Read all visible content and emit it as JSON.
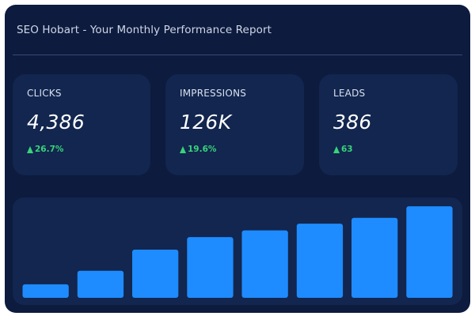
{
  "header": {
    "title": "SEO Hobart - Your Monthly Performance Report"
  },
  "metrics": [
    {
      "label": "CLICKS",
      "value": "4,386",
      "change": "26.7%",
      "trend_icon": "arrow-up-icon"
    },
    {
      "label": "IMPRESSIONS",
      "value": "126K",
      "change": "19.6%",
      "trend_icon": "arrow-up-icon"
    },
    {
      "label": "LEADS",
      "value": "386",
      "change": "63",
      "trend_icon": "arrow-up-icon"
    }
  ],
  "colors": {
    "background": "#0d1b3e",
    "card": "#12264f",
    "bar": "#1e8cff",
    "positive": "#38d37a"
  },
  "chart_data": {
    "type": "bar",
    "categories": [
      "",
      "",
      "",
      "",
      "",
      "",
      "",
      ""
    ],
    "values": [
      14,
      28,
      50,
      63,
      70,
      77,
      83,
      95
    ],
    "title": "",
    "xlabel": "",
    "ylabel": "",
    "ylim": [
      0,
      100
    ],
    "grid": false
  }
}
